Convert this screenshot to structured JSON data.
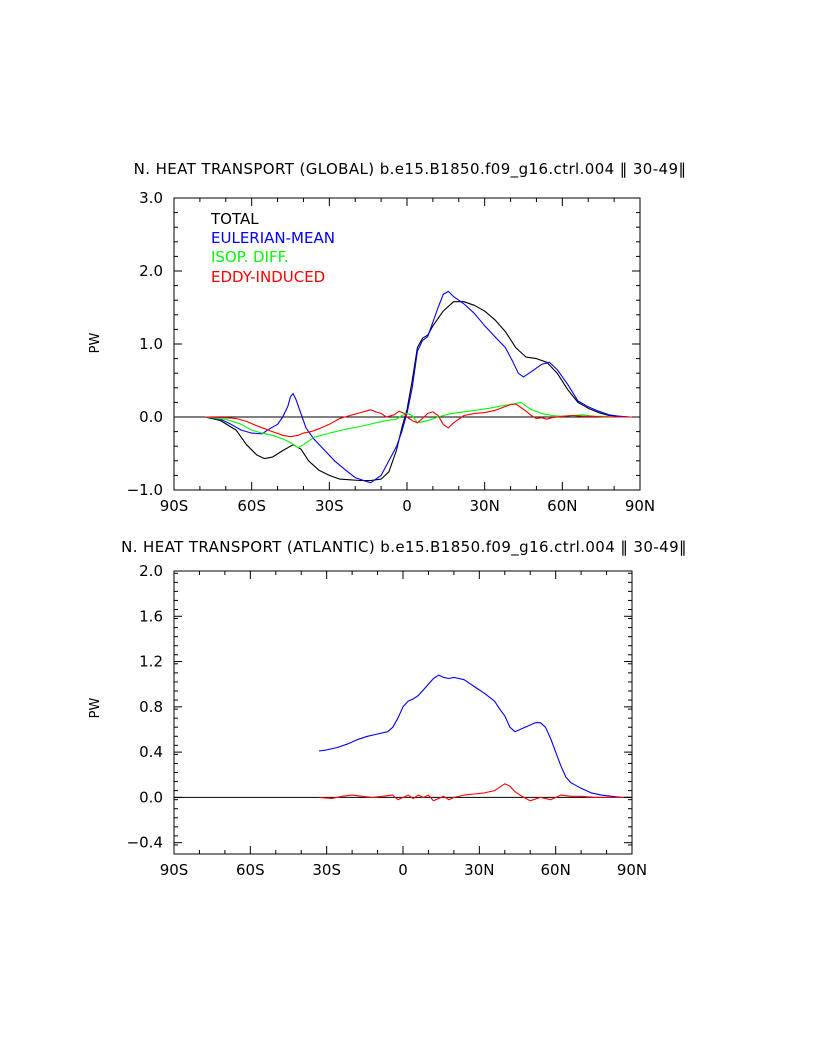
{
  "chart_data": [
    {
      "type": "line",
      "title": "N. HEAT TRANSPORT (GLOBAL) b.e15.B1850.f09_g16.ctrl.004 ‖ 30-49‖",
      "xlabel": "",
      "ylabel": "PW",
      "xlim": [
        -90,
        90
      ],
      "ylim": [
        -1.0,
        3.0
      ],
      "x_ticks": [
        -90,
        -60,
        -30,
        0,
        30,
        60,
        90
      ],
      "x_tick_labels": [
        "90S",
        "60S",
        "30S",
        "0",
        "30N",
        "60N",
        "90N"
      ],
      "y_ticks": [
        -1.0,
        0.0,
        1.0,
        2.0,
        3.0
      ],
      "y_tick_labels": [
        "−1.0",
        "0.0",
        "1.0",
        "2.0",
        "3.0"
      ],
      "zero_line": true,
      "legend": "top-left",
      "series": [
        {
          "name": "TOTAL",
          "color": "#000000",
          "x": [
            -78,
            -72,
            -66,
            -62,
            -58,
            -55,
            -52,
            -48,
            -44,
            -41,
            -38,
            -34,
            -30,
            -26,
            -22,
            -18,
            -14,
            -10,
            -7,
            -4,
            -2,
            0,
            2,
            4,
            6,
            8,
            10,
            14,
            18,
            22,
            26,
            30,
            34,
            38,
            42,
            46,
            50,
            54,
            58,
            62,
            66,
            70,
            74,
            78,
            82,
            86,
            90
          ],
          "y": [
            0,
            -0.05,
            -0.18,
            -0.38,
            -0.52,
            -0.57,
            -0.55,
            -0.46,
            -0.38,
            -0.44,
            -0.6,
            -0.73,
            -0.8,
            -0.85,
            -0.86,
            -0.87,
            -0.87,
            -0.85,
            -0.75,
            -0.45,
            -0.15,
            0.1,
            0.5,
            0.95,
            1.08,
            1.12,
            1.25,
            1.45,
            1.58,
            1.58,
            1.53,
            1.45,
            1.33,
            1.17,
            0.95,
            0.82,
            0.8,
            0.75,
            0.6,
            0.38,
            0.2,
            0.12,
            0.06,
            0.02,
            0.01,
            0,
            0
          ]
        },
        {
          "name": "EULERIAN-MEAN",
          "color": "#0000ff",
          "x": [
            -78,
            -72,
            -68,
            -64,
            -60,
            -56,
            -53,
            -50,
            -48,
            -46,
            -45,
            -44,
            -43,
            -41,
            -39,
            -36,
            -32,
            -28,
            -24,
            -20,
            -16,
            -14,
            -12,
            -10,
            -7,
            -4,
            -2,
            0,
            2,
            4,
            6,
            8,
            10,
            12,
            14,
            16,
            18,
            22,
            26,
            30,
            34,
            38,
            41,
            43,
            45,
            48,
            52,
            55,
            58,
            62,
            66,
            70,
            74,
            78,
            82,
            86,
            90
          ],
          "y": [
            0,
            -0.03,
            -0.1,
            -0.18,
            -0.22,
            -0.23,
            -0.16,
            -0.1,
            0,
            0.15,
            0.28,
            0.32,
            0.25,
            0.05,
            -0.15,
            -0.3,
            -0.45,
            -0.6,
            -0.72,
            -0.83,
            -0.88,
            -0.9,
            -0.85,
            -0.8,
            -0.6,
            -0.4,
            -0.2,
            0.05,
            0.4,
            0.9,
            1.05,
            1.1,
            1.3,
            1.5,
            1.68,
            1.72,
            1.65,
            1.55,
            1.42,
            1.25,
            1.1,
            0.95,
            0.75,
            0.6,
            0.55,
            0.62,
            0.72,
            0.75,
            0.65,
            0.45,
            0.22,
            0.14,
            0.08,
            0.03,
            0.01,
            0,
            0
          ]
        },
        {
          "name": "ISOP. DIFF.",
          "color": "#00ff00",
          "x": [
            -78,
            -70,
            -64,
            -60,
            -56,
            -52,
            -48,
            -45,
            -42,
            -40,
            -36,
            -30,
            -24,
            -18,
            -12,
            -8,
            -4,
            -2,
            0,
            2,
            4,
            8,
            12,
            16,
            20,
            24,
            28,
            32,
            36,
            40,
            44,
            48,
            52,
            56,
            60,
            64,
            68,
            72,
            76,
            80,
            90
          ],
          "y": [
            0,
            -0.03,
            -0.1,
            -0.18,
            -0.22,
            -0.25,
            -0.3,
            -0.35,
            -0.42,
            -0.38,
            -0.28,
            -0.22,
            -0.17,
            -0.13,
            -0.08,
            -0.05,
            -0.03,
            0.02,
            0.05,
            0.02,
            -0.08,
            -0.05,
            0,
            0.04,
            0.06,
            0.08,
            0.1,
            0.12,
            0.15,
            0.17,
            0.2,
            0.1,
            0.05,
            0.02,
            0.01,
            0.02,
            0.03,
            0.01,
            0.01,
            0,
            0
          ]
        },
        {
          "name": "EDDY-INDUCED",
          "color": "#ff0000",
          "x": [
            -78,
            -70,
            -66,
            -62,
            -58,
            -55,
            -52,
            -48,
            -45,
            -42,
            -40,
            -37,
            -34,
            -30,
            -26,
            -22,
            -18,
            -16,
            -14,
            -12,
            -10,
            -8,
            -5,
            -3,
            -1,
            0,
            2,
            4,
            6,
            8,
            10,
            12,
            14,
            16,
            18,
            22,
            26,
            30,
            34,
            37,
            40,
            42,
            44,
            46,
            48,
            50,
            52,
            54,
            56,
            60,
            64,
            68,
            72,
            76,
            90
          ],
          "y": [
            0,
            -0.01,
            -0.02,
            -0.06,
            -0.12,
            -0.16,
            -0.2,
            -0.25,
            -0.27,
            -0.25,
            -0.22,
            -0.2,
            -0.16,
            -0.1,
            -0.02,
            0.02,
            0.06,
            0.08,
            0.1,
            0.07,
            0.05,
            0,
            0.03,
            0.08,
            0.05,
            0,
            -0.05,
            -0.08,
            -0.02,
            0.05,
            0.07,
            0.02,
            -0.1,
            -0.15,
            -0.08,
            0.02,
            0.05,
            0.06,
            0.09,
            0.13,
            0.17,
            0.18,
            0.13,
            0.08,
            0.02,
            -0.02,
            -0.01,
            -0.03,
            -0.01,
            0.01,
            0.02,
            0.01,
            0.01,
            0,
            0
          ]
        }
      ]
    },
    {
      "type": "line",
      "title": "N. HEAT TRANSPORT (ATLANTIC) b.e15.B1850.f09_g16.ctrl.004 ‖ 30-49‖",
      "xlabel": "",
      "ylabel": "PW",
      "xlim": [
        -90,
        90
      ],
      "ylim": [
        -0.5,
        2.0
      ],
      "x_ticks": [
        -90,
        -60,
        -30,
        0,
        30,
        60,
        90
      ],
      "x_tick_labels": [
        "90S",
        "60S",
        "30S",
        "0",
        "30N",
        "60N",
        "90N"
      ],
      "y_ticks": [
        -0.4,
        0.0,
        0.4,
        0.8,
        1.2,
        1.6,
        2.0
      ],
      "y_tick_labels": [
        "−0.4",
        "0.0",
        "0.4",
        "0.8",
        "1.2",
        "1.6",
        "2.0"
      ],
      "zero_line": true,
      "series": [
        {
          "name": "EULERIAN-MEAN",
          "color": "#0000ff",
          "x": [
            -33,
            -30,
            -26,
            -22,
            -18,
            -14,
            -10,
            -6,
            -4,
            -2,
            0,
            2,
            4,
            6,
            8,
            10,
            12,
            14,
            16,
            18,
            20,
            24,
            28,
            32,
            36,
            38,
            40,
            42,
            44,
            46,
            48,
            50,
            52,
            54,
            56,
            58,
            60,
            62,
            64,
            66,
            70,
            74,
            78,
            82,
            86,
            90
          ],
          "y": [
            0.41,
            0.42,
            0.44,
            0.47,
            0.51,
            0.54,
            0.56,
            0.58,
            0.62,
            0.7,
            0.8,
            0.85,
            0.87,
            0.9,
            0.95,
            1.0,
            1.05,
            1.08,
            1.06,
            1.05,
            1.06,
            1.04,
            0.98,
            0.92,
            0.85,
            0.78,
            0.72,
            0.62,
            0.58,
            0.6,
            0.62,
            0.64,
            0.66,
            0.66,
            0.62,
            0.52,
            0.4,
            0.28,
            0.18,
            0.13,
            0.08,
            0.04,
            0.02,
            0.01,
            0,
            0
          ]
        },
        {
          "name": "EDDY-INDUCED",
          "color": "#ff0000",
          "x": [
            -33,
            -28,
            -24,
            -20,
            -16,
            -12,
            -8,
            -4,
            -2,
            0,
            2,
            4,
            6,
            8,
            10,
            12,
            14,
            16,
            18,
            20,
            24,
            28,
            32,
            36,
            38,
            40,
            42,
            44,
            46,
            50,
            54,
            58,
            62,
            66,
            70,
            76,
            90
          ],
          "y": [
            0,
            -0.01,
            0.01,
            0.02,
            0.01,
            0,
            0.01,
            0.02,
            -0.02,
            0,
            0.02,
            -0.01,
            0.02,
            0,
            0.02,
            -0.03,
            -0.01,
            0.01,
            -0.02,
            0,
            0.02,
            0.03,
            0.04,
            0.06,
            0.09,
            0.12,
            0.1,
            0.05,
            0.02,
            -0.03,
            0,
            -0.02,
            0.02,
            0.01,
            0.01,
            0,
            0
          ]
        }
      ]
    }
  ]
}
